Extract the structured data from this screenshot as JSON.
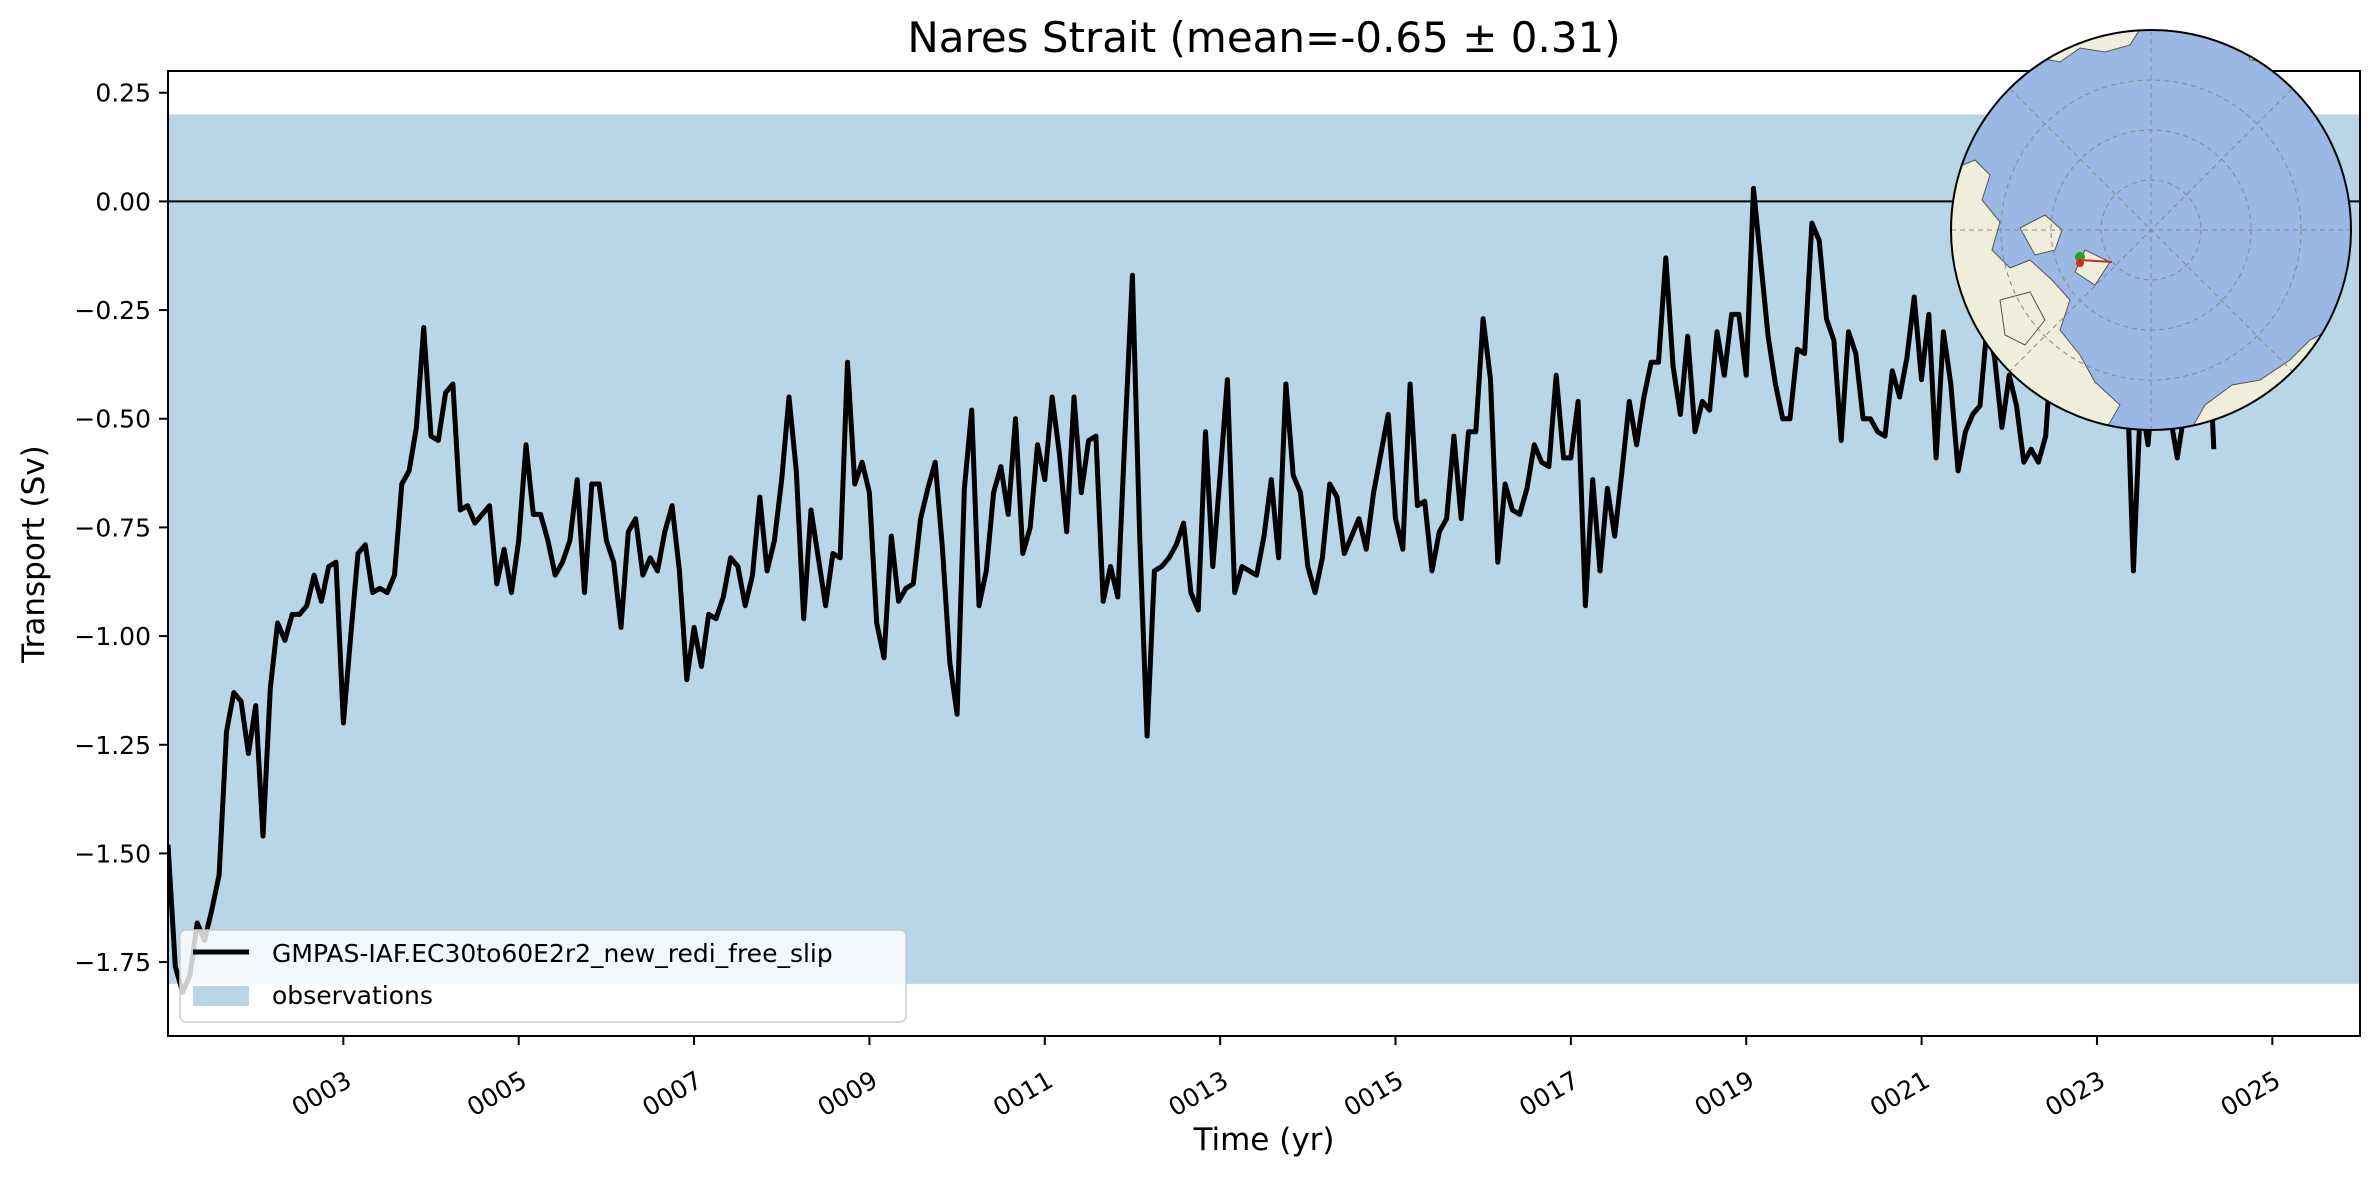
{
  "chart_data": {
    "type": "line",
    "title": "Nares Strait (mean=-0.65 ± 0.31)",
    "xlabel": "Time (yr)",
    "ylabel": "Transport (Sv)",
    "xlim": [
      1.0,
      26.0
    ],
    "ylim": [
      -1.92,
      0.3
    ],
    "x_ticks": [
      3,
      5,
      7,
      9,
      11,
      13,
      15,
      17,
      19,
      21,
      23,
      25
    ],
    "x_tick_labels": [
      "0003",
      "0005",
      "0007",
      "0009",
      "0011",
      "0013",
      "0015",
      "0017",
      "0019",
      "0021",
      "0023",
      "0025"
    ],
    "y_ticks": [
      0.25,
      0.0,
      -0.25,
      -0.5,
      -0.75,
      -1.0,
      -1.25,
      -1.5,
      -1.75
    ],
    "y_tick_labels": [
      "0.25",
      "0.00",
      "−0.25",
      "−0.50",
      "−0.75",
      "−1.00",
      "−1.25",
      "−1.50",
      "−1.75"
    ],
    "zero_line": 0.0,
    "observation_band": {
      "name": "observations",
      "range": [
        -1.8,
        0.2
      ],
      "color": "#b9d5e8"
    },
    "series": [
      {
        "name": "GMPAS-IAF.EC30to60E2r2_new_redi_free_slip",
        "color": "#000000",
        "x_start": 1.0,
        "x_step": 0.08333,
        "values": [
          -1.48,
          -1.76,
          -1.82,
          -1.78,
          -1.66,
          -1.7,
          -1.63,
          -1.55,
          -1.22,
          -1.13,
          -1.15,
          -1.27,
          -1.16,
          -1.46,
          -1.12,
          -0.97,
          -1.01,
          -0.95,
          -0.95,
          -0.93,
          -0.86,
          -0.92,
          -0.84,
          -0.83,
          -1.2,
          -1.0,
          -0.81,
          -0.79,
          -0.9,
          -0.89,
          -0.9,
          -0.86,
          -0.65,
          -0.62,
          -0.52,
          -0.29,
          -0.54,
          -0.55,
          -0.44,
          -0.42,
          -0.71,
          -0.7,
          -0.74,
          -0.72,
          -0.7,
          -0.88,
          -0.8,
          -0.9,
          -0.78,
          -0.56,
          -0.72,
          -0.72,
          -0.78,
          -0.86,
          -0.83,
          -0.78,
          -0.64,
          -0.9,
          -0.65,
          -0.65,
          -0.78,
          -0.83,
          -0.98,
          -0.76,
          -0.73,
          -0.86,
          -0.82,
          -0.85,
          -0.76,
          -0.7,
          -0.85,
          -1.1,
          -0.98,
          -1.07,
          -0.95,
          -0.96,
          -0.91,
          -0.82,
          -0.84,
          -0.93,
          -0.86,
          -0.68,
          -0.85,
          -0.78,
          -0.64,
          -0.45,
          -0.62,
          -0.96,
          -0.71,
          -0.82,
          -0.93,
          -0.81,
          -0.82,
          -0.37,
          -0.65,
          -0.6,
          -0.67,
          -0.97,
          -1.05,
          -0.77,
          -0.92,
          -0.89,
          -0.88,
          -0.73,
          -0.66,
          -0.6,
          -0.8,
          -1.06,
          -1.18,
          -0.66,
          -0.48,
          -0.93,
          -0.85,
          -0.67,
          -0.61,
          -0.72,
          -0.5,
          -0.81,
          -0.75,
          -0.56,
          -0.64,
          -0.45,
          -0.58,
          -0.76,
          -0.45,
          -0.67,
          -0.55,
          -0.54,
          -0.92,
          -0.84,
          -0.91,
          -0.53,
          -0.17,
          -0.77,
          -1.23,
          -0.85,
          -0.84,
          -0.82,
          -0.79,
          -0.74,
          -0.9,
          -0.94,
          -0.53,
          -0.84,
          -0.63,
          -0.41,
          -0.9,
          -0.84,
          -0.85,
          -0.86,
          -0.77,
          -0.64,
          -0.82,
          -0.42,
          -0.63,
          -0.67,
          -0.84,
          -0.9,
          -0.82,
          -0.65,
          -0.68,
          -0.81,
          -0.77,
          -0.73,
          -0.8,
          -0.67,
          -0.58,
          -0.49,
          -0.73,
          -0.8,
          -0.42,
          -0.7,
          -0.69,
          -0.85,
          -0.76,
          -0.73,
          -0.54,
          -0.73,
          -0.53,
          -0.53,
          -0.27,
          -0.41,
          -0.83,
          -0.65,
          -0.71,
          -0.72,
          -0.66,
          -0.56,
          -0.6,
          -0.61,
          -0.4,
          -0.59,
          -0.59,
          -0.46,
          -0.93,
          -0.64,
          -0.85,
          -0.66,
          -0.77,
          -0.62,
          -0.46,
          -0.56,
          -0.45,
          -0.37,
          -0.37,
          -0.13,
          -0.38,
          -0.49,
          -0.31,
          -0.53,
          -0.46,
          -0.48,
          -0.3,
          -0.4,
          -0.26,
          -0.26,
          -0.4,
          0.03,
          -0.14,
          -0.31,
          -0.42,
          -0.5,
          -0.5,
          -0.34,
          -0.35,
          -0.05,
          -0.09,
          -0.27,
          -0.32,
          -0.55,
          -0.3,
          -0.35,
          -0.5,
          -0.5,
          -0.53,
          -0.54,
          -0.39,
          -0.45,
          -0.36,
          -0.22,
          -0.41,
          -0.26,
          -0.59,
          -0.3,
          -0.42,
          -0.62,
          -0.53,
          -0.49,
          -0.47,
          -0.28,
          -0.36,
          -0.52,
          -0.4,
          -0.47,
          -0.6,
          -0.57,
          -0.6,
          -0.54,
          -0.29,
          -0.15,
          -0.22,
          -0.35,
          -0.33,
          -0.3,
          -0.44,
          -0.43,
          -0.42,
          -0.37,
          -0.34,
          -0.85,
          -0.45,
          -0.56,
          -0.36,
          -0.49,
          -0.49,
          -0.59,
          -0.48,
          -0.37,
          -0.17,
          -0.19,
          -0.57
        ]
      }
    ],
    "legend": {
      "position": "lower-left",
      "entries": [
        "GMPAS-IAF.EC30to60E2r2_new_redi_free_slip",
        "observations"
      ]
    },
    "inset_map": {
      "type": "north-polar-stereographic",
      "position": "top-right",
      "land_color": "#efeedb",
      "ocean_color": "#9bb8e4",
      "marker_colors": [
        "#2ca02c",
        "#d62728"
      ]
    }
  }
}
